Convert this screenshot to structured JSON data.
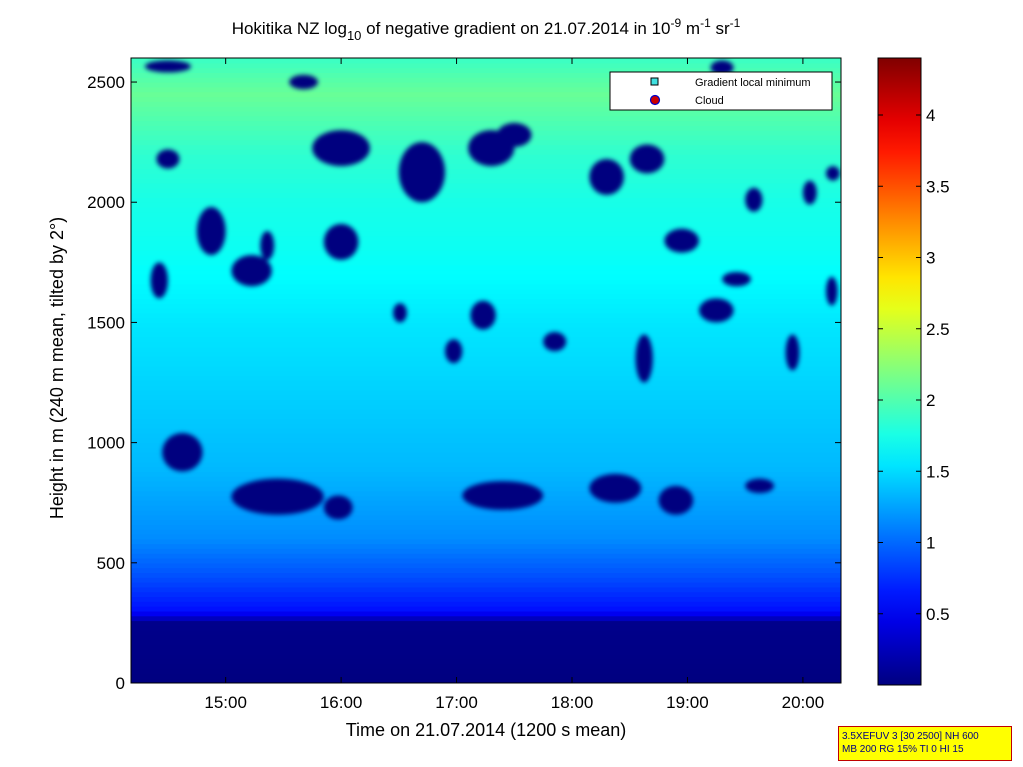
{
  "chart_data": {
    "type": "heatmap",
    "title": {
      "pre": "Hokitika NZ log",
      "sub": "10",
      "mid1": " of negative gradient on 21.07.2014 in 10",
      "sup1": "-9",
      "mid2": " m",
      "sup2": "-1",
      "mid3": " sr",
      "sup3": "-1"
    },
    "xlabel": "Time on 21.07.2014 (1200 s mean)",
    "ylabel": "Height in m (240 m mean, tilted by 2°)",
    "x_ticks": [
      {
        "label": "15:00",
        "value": 15.0
      },
      {
        "label": "16:00",
        "value": 16.0
      },
      {
        "label": "17:00",
        "value": 17.0
      },
      {
        "label": "18:00",
        "value": 18.0
      },
      {
        "label": "19:00",
        "value": 19.0
      },
      {
        "label": "20:00",
        "value": 20.0
      }
    ],
    "xlim": [
      14.18,
      20.33
    ],
    "y_ticks": [
      0,
      500,
      1000,
      1500,
      2000,
      2500
    ],
    "ylim": [
      0,
      2600
    ],
    "colorbar": {
      "ticks": [
        0.5,
        1,
        1.5,
        2,
        2.5,
        3,
        3.5,
        4
      ],
      "tick_labels": [
        "0.5",
        "1",
        "1.5",
        "2",
        "2.5",
        "3",
        "3.5",
        "4"
      ],
      "range": [
        0,
        4.4
      ],
      "colormap": "jet"
    },
    "legend": {
      "position": "top-right",
      "entries": [
        {
          "label": "Gradient local minimum",
          "marker": "square",
          "color": "#40e0e0"
        },
        {
          "label": "Cloud",
          "marker": "circle",
          "color": "#cc0000"
        }
      ]
    },
    "value_profile": {
      "heights": [
        0,
        250,
        300,
        450,
        600,
        900,
        1200,
        1500,
        1800,
        2000,
        2200,
        2450,
        2600
      ],
      "values": [
        0.0,
        0.05,
        0.6,
        0.9,
        1.15,
        1.35,
        1.45,
        1.55,
        1.7,
        1.75,
        1.85,
        2.1,
        1.9
      ]
    },
    "dark_patches": [
      {
        "x": 14.45,
        "y": 880,
        "w": 0.35,
        "h": 160
      },
      {
        "x": 15.05,
        "y": 700,
        "w": 0.8,
        "h": 150
      },
      {
        "x": 15.85,
        "y": 680,
        "w": 0.25,
        "h": 100
      },
      {
        "x": 17.05,
        "y": 720,
        "w": 0.7,
        "h": 120
      },
      {
        "x": 18.15,
        "y": 750,
        "w": 0.45,
        "h": 120
      },
      {
        "x": 18.75,
        "y": 700,
        "w": 0.3,
        "h": 120
      },
      {
        "x": 19.5,
        "y": 790,
        "w": 0.25,
        "h": 60
      },
      {
        "x": 14.35,
        "y": 1600,
        "w": 0.15,
        "h": 150
      },
      {
        "x": 14.75,
        "y": 1780,
        "w": 0.25,
        "h": 200
      },
      {
        "x": 15.05,
        "y": 1650,
        "w": 0.35,
        "h": 130
      },
      {
        "x": 15.3,
        "y": 1760,
        "w": 0.12,
        "h": 120
      },
      {
        "x": 15.85,
        "y": 1760,
        "w": 0.3,
        "h": 150
      },
      {
        "x": 16.45,
        "y": 1500,
        "w": 0.12,
        "h": 80
      },
      {
        "x": 17.12,
        "y": 1470,
        "w": 0.22,
        "h": 120
      },
      {
        "x": 16.9,
        "y": 1330,
        "w": 0.15,
        "h": 100
      },
      {
        "x": 17.75,
        "y": 1380,
        "w": 0.2,
        "h": 80
      },
      {
        "x": 18.55,
        "y": 1250,
        "w": 0.15,
        "h": 200
      },
      {
        "x": 19.1,
        "y": 1500,
        "w": 0.3,
        "h": 100
      },
      {
        "x": 19.3,
        "y": 1650,
        "w": 0.25,
        "h": 60
      },
      {
        "x": 19.85,
        "y": 1300,
        "w": 0.12,
        "h": 150
      },
      {
        "x": 18.8,
        "y": 1790,
        "w": 0.3,
        "h": 100
      },
      {
        "x": 20.2,
        "y": 1570,
        "w": 0.1,
        "h": 120
      },
      {
        "x": 14.4,
        "y": 2140,
        "w": 0.2,
        "h": 80
      },
      {
        "x": 15.75,
        "y": 2150,
        "w": 0.5,
        "h": 150
      },
      {
        "x": 16.5,
        "y": 2000,
        "w": 0.4,
        "h": 250
      },
      {
        "x": 17.1,
        "y": 2150,
        "w": 0.4,
        "h": 150
      },
      {
        "x": 17.35,
        "y": 2230,
        "w": 0.3,
        "h": 100
      },
      {
        "x": 18.15,
        "y": 2030,
        "w": 0.3,
        "h": 150
      },
      {
        "x": 18.5,
        "y": 2120,
        "w": 0.3,
        "h": 120
      },
      {
        "x": 19.5,
        "y": 1960,
        "w": 0.15,
        "h": 100
      },
      {
        "x": 20.0,
        "y": 1990,
        "w": 0.12,
        "h": 100
      },
      {
        "x": 20.2,
        "y": 2090,
        "w": 0.12,
        "h": 60
      },
      {
        "x": 14.3,
        "y": 2540,
        "w": 0.4,
        "h": 50
      },
      {
        "x": 15.55,
        "y": 2470,
        "w": 0.25,
        "h": 60
      },
      {
        "x": 19.2,
        "y": 2530,
        "w": 0.2,
        "h": 60
      }
    ],
    "info_box": [
      "3.5XEFUV 3 [30 2500] NH 600",
      "MB 200 RG 15% TI 0 HI 15"
    ]
  }
}
